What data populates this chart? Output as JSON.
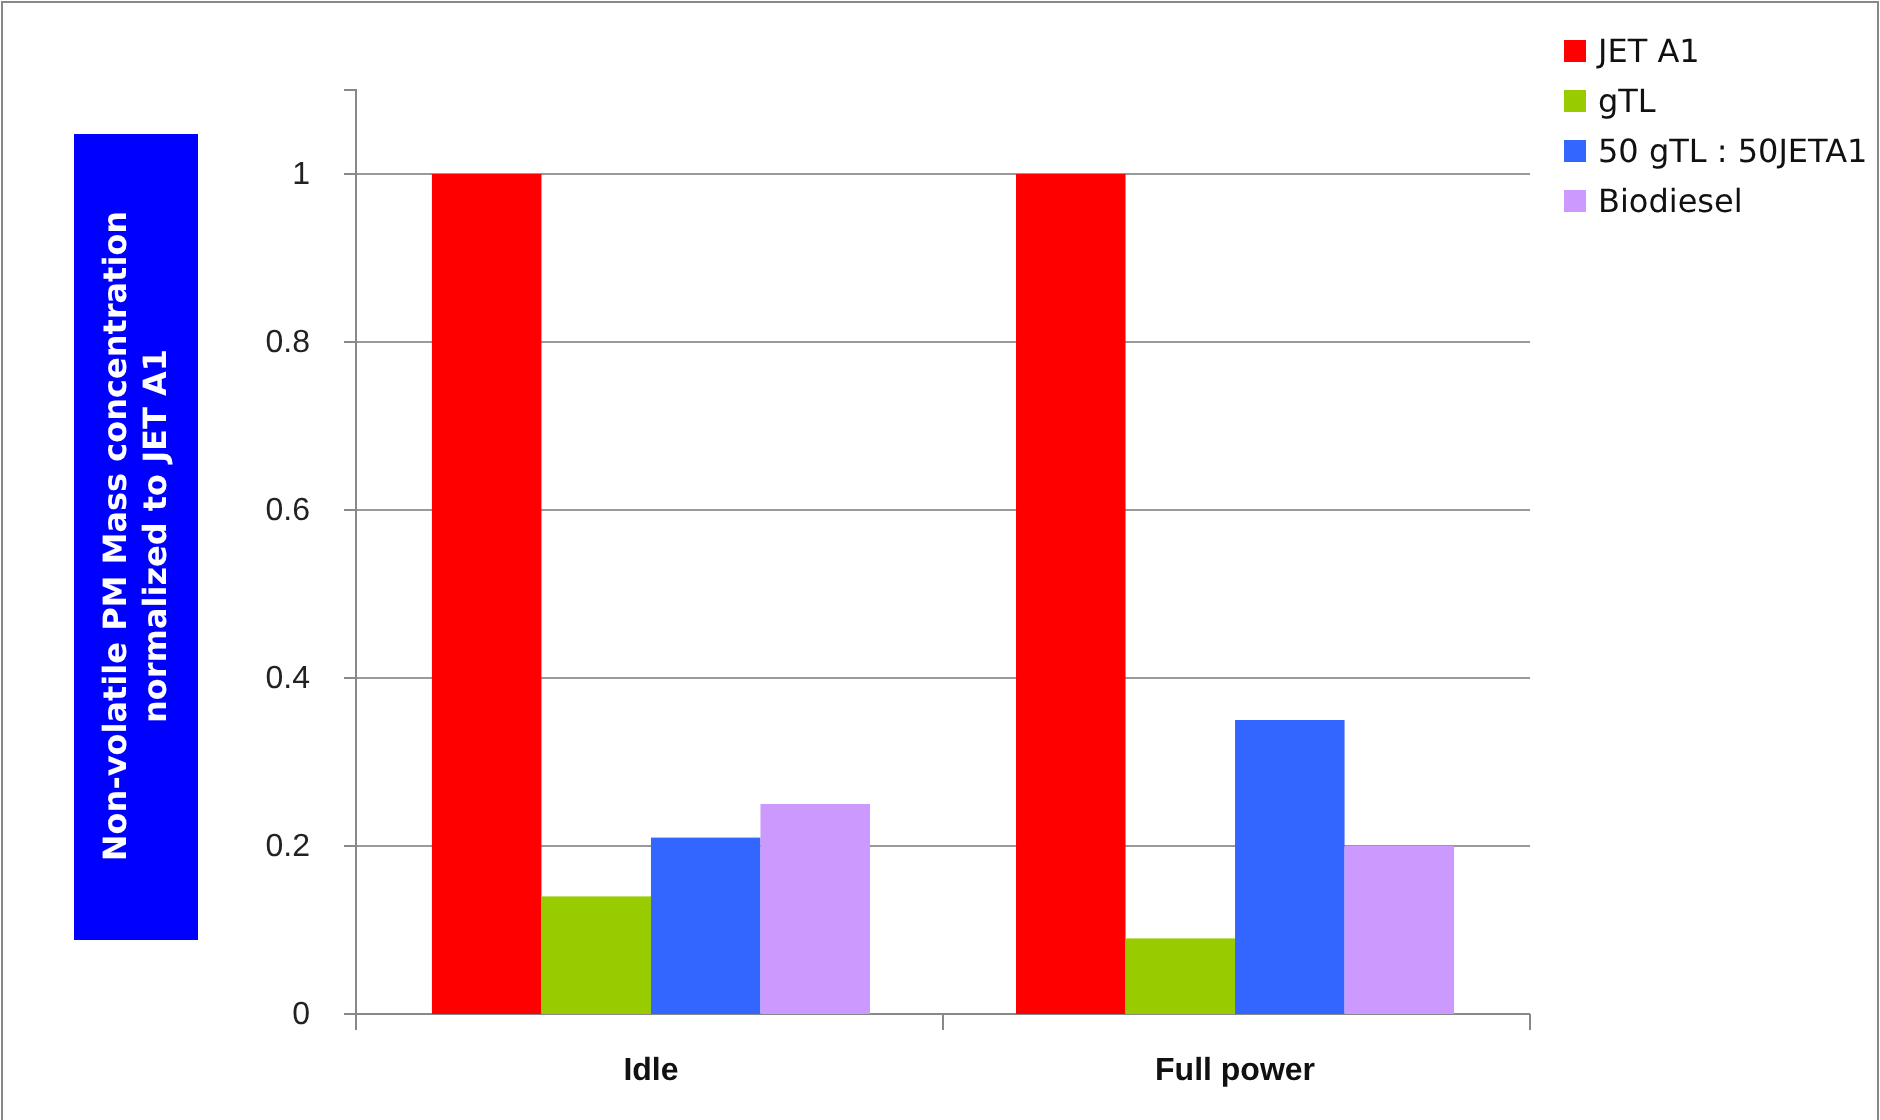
{
  "chart_data": {
    "type": "bar",
    "ylabel": "Non-volatile PM Mass concentration\nnormalized to JET A1",
    "categories": [
      "Idle",
      "Full power"
    ],
    "series": [
      {
        "name": "JET A1",
        "color": "#ff0000",
        "values": [
          1,
          1
        ]
      },
      {
        "name": "gTL",
        "color": "#99cc00",
        "values": [
          0.14,
          0.09
        ]
      },
      {
        "name": "50 gTL : 50JETA1",
        "color": "#3366ff",
        "values": [
          0.21,
          0.35
        ]
      },
      {
        "name": "Biodiesel",
        "color": "#cc99ff",
        "values": [
          0.25,
          0.2
        ]
      }
    ],
    "ylim": [
      0,
      1.1
    ],
    "yticks": [
      0,
      0.2,
      0.4,
      0.6,
      0.8,
      1
    ],
    "grid": "y",
    "legend": "top right"
  }
}
